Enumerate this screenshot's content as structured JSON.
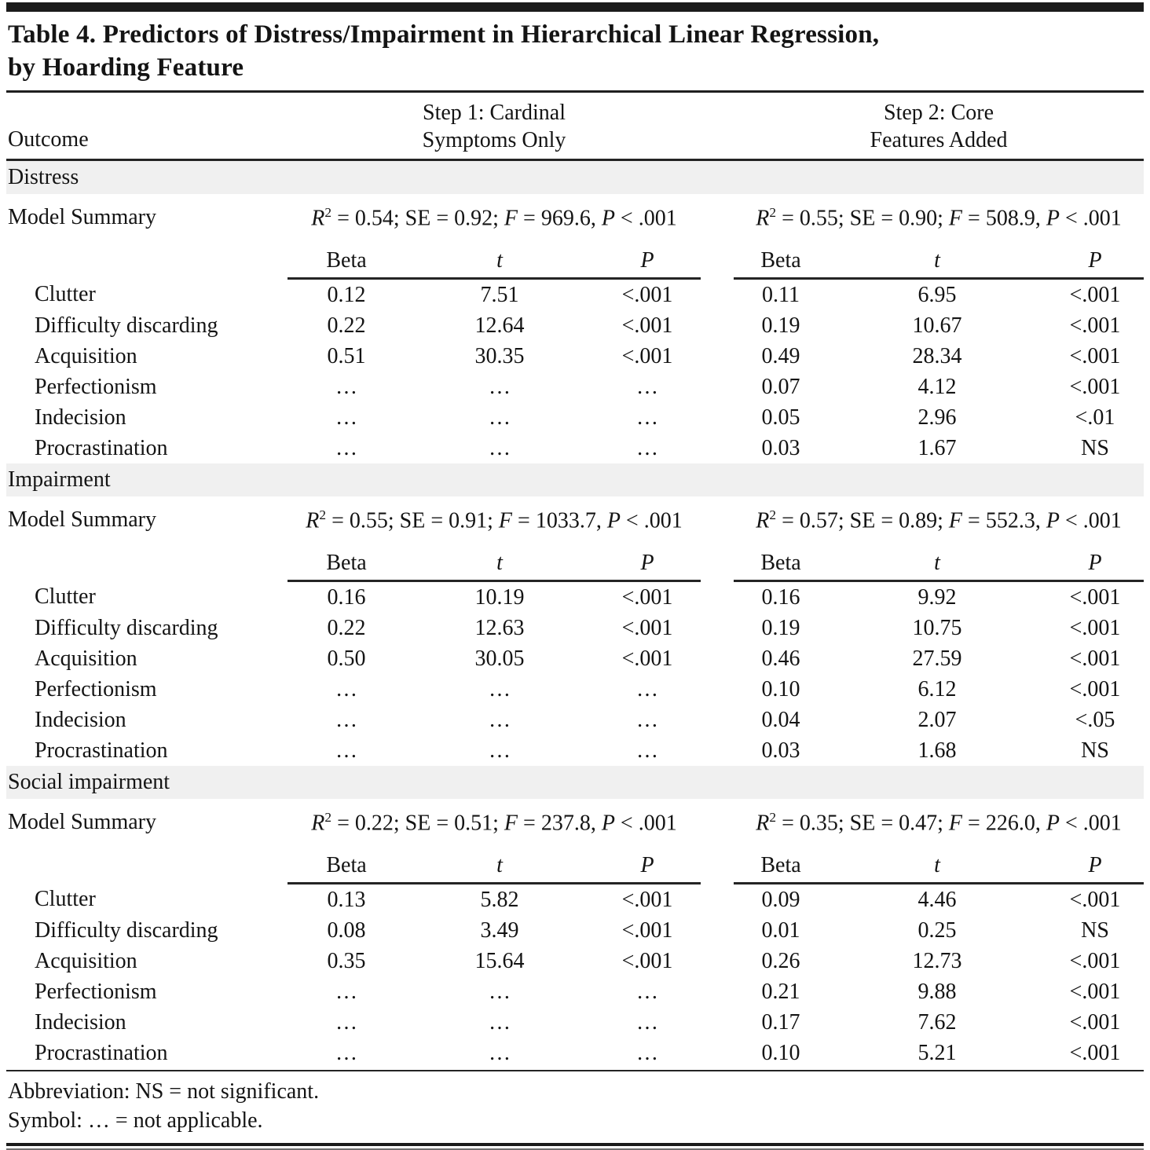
{
  "title": "Table 4. Predictors of Distress/Impairment in Hierarchical Linear Regression,\nby Hoarding Feature",
  "headers": {
    "outcome": "Outcome",
    "step1": "Step 1: Cardinal\nSymptoms Only",
    "step2": "Step 2: Core\nFeatures Added"
  },
  "labels": {
    "model_summary": "Model Summary",
    "col_headers": [
      {
        "label": "Beta",
        "italic": false
      },
      {
        "label": "t",
        "italic": true
      },
      {
        "label": "P",
        "italic": true
      }
    ],
    "stats": {
      "r": "R",
      "r_sup": "2",
      "se": "SE",
      "f": "F",
      "p": "P"
    }
  },
  "sections": [
    {
      "label": "Distress",
      "step1_summary": {
        "r2": "0.54",
        "se": "0.92",
        "f": "969.6",
        "p": "< .001"
      },
      "step2_summary": {
        "r2": "0.55",
        "se": "0.90",
        "f": "508.9",
        "p": "< .001"
      },
      "rows": [
        {
          "label": "Clutter",
          "step1": [
            "0.12",
            "7.51",
            "<.001"
          ],
          "step2": [
            "0.11",
            "6.95",
            "<.001"
          ]
        },
        {
          "label": "Difficulty discarding",
          "step1": [
            "0.22",
            "12.64",
            "<.001"
          ],
          "step2": [
            "0.19",
            "10.67",
            "<.001"
          ]
        },
        {
          "label": "Acquisition",
          "step1": [
            "0.51",
            "30.35",
            "<.001"
          ],
          "step2": [
            "0.49",
            "28.34",
            "<.001"
          ]
        },
        {
          "label": "Perfectionism",
          "step1": [
            "…",
            "…",
            "…"
          ],
          "step2": [
            "0.07",
            "4.12",
            "<.001"
          ]
        },
        {
          "label": "Indecision",
          "step1": [
            "…",
            "…",
            "…"
          ],
          "step2": [
            "0.05",
            "2.96",
            "<.01"
          ]
        },
        {
          "label": "Procrastination",
          "step1": [
            "…",
            "…",
            "…"
          ],
          "step2": [
            "0.03",
            "1.67",
            "NS"
          ]
        }
      ]
    },
    {
      "label": "Impairment",
      "step1_summary": {
        "r2": "0.55",
        "se": "0.91",
        "f": "1033.7",
        "p": "< .001"
      },
      "step2_summary": {
        "r2": "0.57",
        "se": "0.89",
        "f": "552.3",
        "p": "< .001"
      },
      "rows": [
        {
          "label": "Clutter",
          "step1": [
            "0.16",
            "10.19",
            "<.001"
          ],
          "step2": [
            "0.16",
            "9.92",
            "<.001"
          ]
        },
        {
          "label": "Difficulty discarding",
          "step1": [
            "0.22",
            "12.63",
            "<.001"
          ],
          "step2": [
            "0.19",
            "10.75",
            "<.001"
          ]
        },
        {
          "label": "Acquisition",
          "step1": [
            "0.50",
            "30.05",
            "<.001"
          ],
          "step2": [
            "0.46",
            "27.59",
            "<.001"
          ]
        },
        {
          "label": "Perfectionism",
          "step1": [
            "…",
            "…",
            "…"
          ],
          "step2": [
            "0.10",
            "6.12",
            "<.001"
          ]
        },
        {
          "label": "Indecision",
          "step1": [
            "…",
            "…",
            "…"
          ],
          "step2": [
            "0.04",
            "2.07",
            "<.05"
          ]
        },
        {
          "label": "Procrastination",
          "step1": [
            "…",
            "…",
            "…"
          ],
          "step2": [
            "0.03",
            "1.68",
            "NS"
          ]
        }
      ]
    },
    {
      "label": "Social impairment",
      "step1_summary": {
        "r2": "0.22",
        "se": "0.51",
        "f": "237.8",
        "p": "< .001"
      },
      "step2_summary": {
        "r2": "0.35",
        "se": "0.47",
        "f": "226.0",
        "p": "< .001"
      },
      "rows": [
        {
          "label": "Clutter",
          "step1": [
            "0.13",
            "5.82",
            "<.001"
          ],
          "step2": [
            "0.09",
            "4.46",
            "<.001"
          ]
        },
        {
          "label": "Difficulty discarding",
          "step1": [
            "0.08",
            "3.49",
            "<.001"
          ],
          "step2": [
            "0.01",
            "0.25",
            "NS"
          ]
        },
        {
          "label": "Acquisition",
          "step1": [
            "0.35",
            "15.64",
            "<.001"
          ],
          "step2": [
            "0.26",
            "12.73",
            "<.001"
          ]
        },
        {
          "label": "Perfectionism",
          "step1": [
            "…",
            "…",
            "…"
          ],
          "step2": [
            "0.21",
            "9.88",
            "<.001"
          ]
        },
        {
          "label": "Indecision",
          "step1": [
            "…",
            "…",
            "…"
          ],
          "step2": [
            "0.17",
            "7.62",
            "<.001"
          ]
        },
        {
          "label": "Procrastination",
          "step1": [
            "…",
            "…",
            "…"
          ],
          "step2": [
            "0.10",
            "5.21",
            "<.001"
          ]
        }
      ]
    }
  ],
  "footnotes": [
    "Abbreviation: NS = not significant.",
    "Symbol: … = not applicable."
  ]
}
